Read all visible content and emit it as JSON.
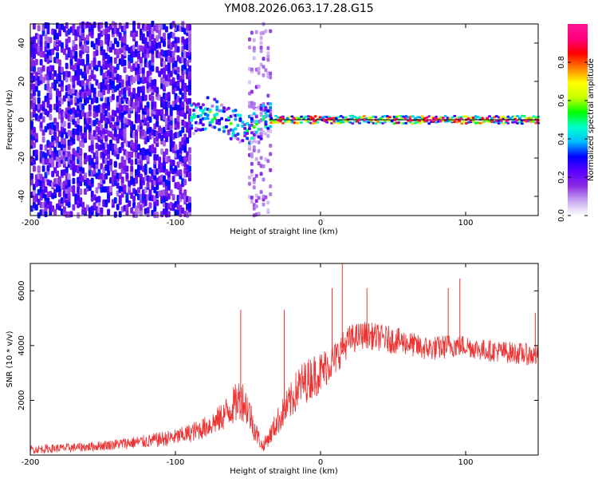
{
  "title": "YM08.2026.063.17.28.G15",
  "chart_data": [
    {
      "type": "heatmap",
      "xlabel": "Height of straight line (km)",
      "ylabel": "Frequency (Hz)",
      "xlim": [
        -200,
        150
      ],
      "ylim": [
        -50,
        50
      ],
      "xticks": [
        -200,
        -100,
        0,
        100
      ],
      "yticks": [
        -40,
        -20,
        0,
        20,
        40
      ],
      "colorbar": {
        "label": "Normalized spectral amplitude",
        "range": [
          0,
          1
        ],
        "ticks": [
          0.0,
          0.2,
          0.4,
          0.6,
          0.8
        ],
        "tick_labels": [
          "0.0",
          "0.2",
          "0.4",
          "0.6",
          "0.8"
        ],
        "colors": [
          "#ffffff",
          "#c8a8f0",
          "#8a2be2",
          "#5a00ff",
          "#0000ff",
          "#00bfff",
          "#00ffcc",
          "#00ff00",
          "#c8ff00",
          "#ffff00",
          "#ff8000",
          "#ff0000",
          "#ff0080",
          "#ff1493"
        ]
      },
      "regions": [
        {
          "name": "broadband noise",
          "x_range": [
            -200,
            -90
          ],
          "freq_range": [
            -50,
            50
          ],
          "amplitude": 0.25
        },
        {
          "name": "scattered noise band",
          "x_range": [
            -50,
            -35
          ],
          "freq_range": [
            -50,
            50
          ],
          "amplitude": 0.12
        },
        {
          "name": "transition signal",
          "x_range": [
            -90,
            -35
          ],
          "freq_range": [
            -15,
            12
          ],
          "amplitude": 0.5
        },
        {
          "name": "carrier line",
          "x_range": [
            -35,
            150
          ],
          "freq_range": [
            -2,
            2
          ],
          "amplitude": 0.9
        }
      ]
    },
    {
      "type": "line",
      "xlabel": "Height of straight line (km)",
      "ylabel": "SNR (10 * v/v)",
      "xlim": [
        -200,
        150
      ],
      "ylim": [
        0,
        7000
      ],
      "xticks": [
        -200,
        -100,
        0,
        100
      ],
      "yticks": [
        2000,
        4000,
        6000
      ],
      "series": [
        {
          "name": "SNR",
          "color": "#ee3333",
          "x": [
            -200,
            -180,
            -160,
            -140,
            -120,
            -100,
            -90,
            -80,
            -70,
            -60,
            -55,
            -50,
            -45,
            -40,
            -35,
            -30,
            -25,
            -20,
            -15,
            -10,
            -5,
            0,
            5,
            10,
            15,
            20,
            30,
            40,
            50,
            60,
            70,
            80,
            90,
            100,
            110,
            120,
            130,
            140,
            150
          ],
          "values": [
            200,
            250,
            300,
            400,
            500,
            650,
            800,
            1000,
            1300,
            1800,
            2100,
            1700,
            900,
            300,
            700,
            1200,
            1600,
            2000,
            2500,
            2700,
            2900,
            3000,
            3300,
            3500,
            3900,
            4200,
            4400,
            4300,
            4200,
            4100,
            3900,
            3900,
            4000,
            4000,
            3850,
            3800,
            3750,
            3700,
            3600
          ],
          "noise": [
            150,
            160,
            170,
            200,
            250,
            300,
            350,
            400,
            500,
            700,
            800,
            700,
            450,
            200,
            350,
            500,
            600,
            700,
            800,
            800,
            800,
            800,
            700,
            650,
            600,
            550,
            500,
            500,
            500,
            450,
            450,
            450,
            450,
            400,
            400,
            400,
            400,
            400,
            400
          ],
          "spikes": [
            {
              "x": -55,
              "y": 5300
            },
            {
              "x": -25,
              "y": 5300
            },
            {
              "x": 15,
              "y": 7000
            },
            {
              "x": 8,
              "y": 6100
            },
            {
              "x": 32,
              "y": 6100
            },
            {
              "x": 88,
              "y": 6100
            },
            {
              "x": 96,
              "y": 6450
            },
            {
              "x": 148,
              "y": 5200
            }
          ]
        }
      ]
    }
  ]
}
